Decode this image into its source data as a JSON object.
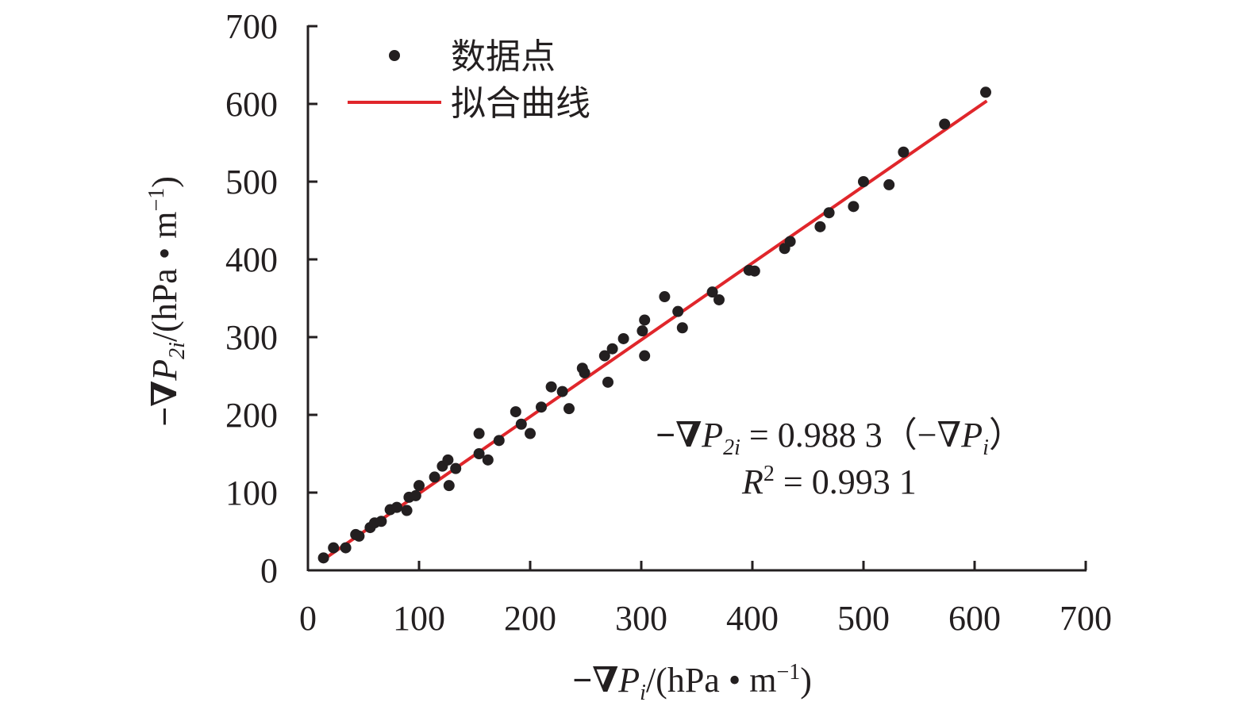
{
  "chart_data": {
    "type": "scatter",
    "xlabel": {
      "prefix": "−∇",
      "var": "P",
      "sub": "i",
      "unit": "/(hPa • m",
      "sup": "−1",
      "close": ")"
    },
    "ylabel": {
      "prefix": "−∇",
      "var": "P",
      "sub": "2i",
      "unit": "/(hPa • m",
      "sup": "−1",
      "close": ")"
    },
    "xlim": [
      0,
      700
    ],
    "ylim": [
      0,
      700
    ],
    "xticks": [
      "0",
      "100",
      "200",
      "300",
      "400",
      "500",
      "600",
      "700"
    ],
    "yticks": [
      "0",
      "100",
      "200",
      "300",
      "400",
      "500",
      "600",
      "700"
    ],
    "grid": false,
    "legend": {
      "placement": "top-left",
      "items": [
        {
          "label": "数据点",
          "kind": "marker",
          "color": "#231f20"
        },
        {
          "label": "拟合曲线",
          "kind": "line",
          "color": "#e0262b"
        }
      ]
    },
    "annotation": {
      "equation": {
        "lhs_prefix": "−∇",
        "lhs_var": "P",
        "lhs_sub": "2i",
        "rhs": " = 0.988 3（−∇",
        "rhs_var": "P",
        "rhs_sub": "i",
        "close": "）"
      },
      "r2": {
        "var": "R",
        "sup": "2",
        "value": " = 0.993 1"
      }
    },
    "fit": {
      "slope": 0.9883,
      "r2": 0.9931,
      "x_range": [
        13,
        611
      ],
      "color": "#e0262b"
    },
    "series": [
      {
        "name": "数据点",
        "color": "#231f20",
        "points": [
          [
            14,
            16
          ],
          [
            23,
            29
          ],
          [
            34,
            29
          ],
          [
            43,
            46
          ],
          [
            46,
            44
          ],
          [
            56,
            55
          ],
          [
            60,
            61
          ],
          [
            66,
            63
          ],
          [
            74,
            78
          ],
          [
            80,
            81
          ],
          [
            89,
            77
          ],
          [
            91,
            94
          ],
          [
            97,
            96
          ],
          [
            100,
            109
          ],
          [
            114,
            120
          ],
          [
            121,
            134
          ],
          [
            126,
            142
          ],
          [
            127,
            109
          ],
          [
            133,
            131
          ],
          [
            154,
            176
          ],
          [
            154,
            150
          ],
          [
            162,
            142
          ],
          [
            172,
            167
          ],
          [
            187,
            204
          ],
          [
            192,
            188
          ],
          [
            200,
            176
          ],
          [
            210,
            210
          ],
          [
            219,
            236
          ],
          [
            229,
            230
          ],
          [
            235,
            208
          ],
          [
            247,
            260
          ],
          [
            249,
            254
          ],
          [
            267,
            276
          ],
          [
            270,
            242
          ],
          [
            274,
            285
          ],
          [
            284,
            298
          ],
          [
            301,
            308
          ],
          [
            303,
            322
          ],
          [
            303,
            276
          ],
          [
            321,
            352
          ],
          [
            333,
            333
          ],
          [
            337,
            312
          ],
          [
            364,
            358
          ],
          [
            370,
            348
          ],
          [
            397,
            386
          ],
          [
            402,
            385
          ],
          [
            429,
            414
          ],
          [
            434,
            423
          ],
          [
            461,
            442
          ],
          [
            469,
            460
          ],
          [
            491,
            468
          ],
          [
            500,
            500
          ],
          [
            523,
            496
          ],
          [
            536,
            538
          ],
          [
            573,
            574
          ],
          [
            610,
            615
          ]
        ]
      }
    ]
  }
}
